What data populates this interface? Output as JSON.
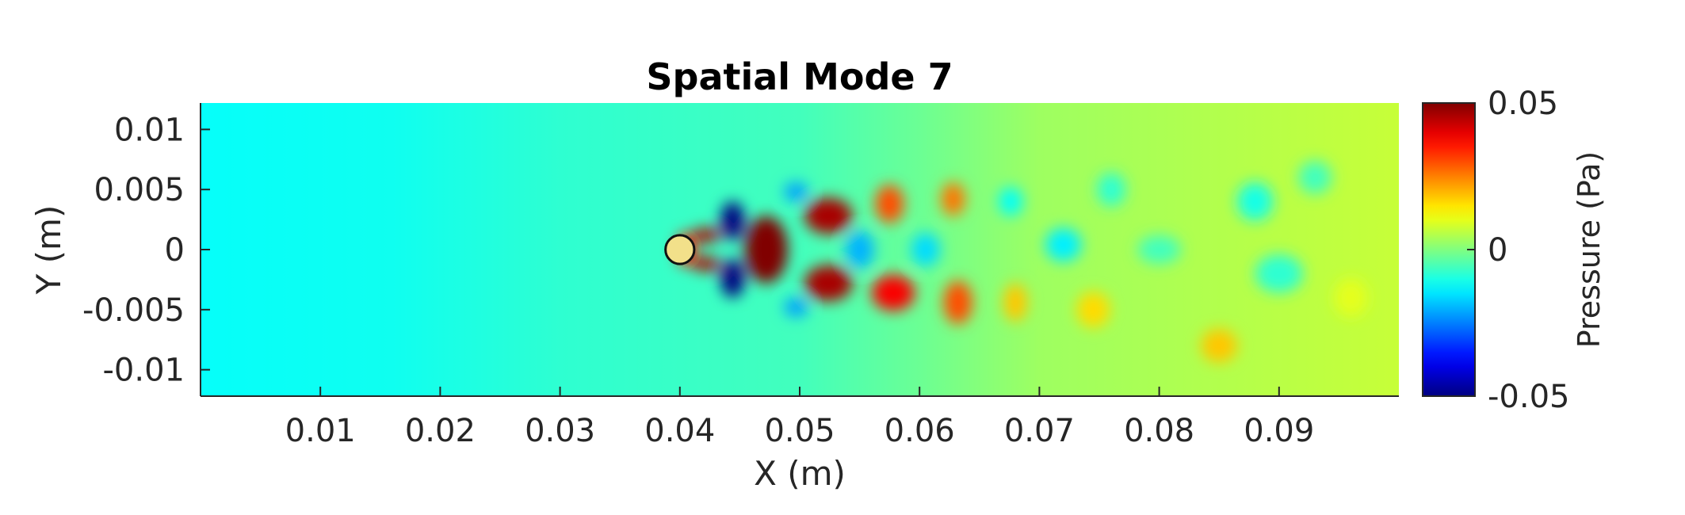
{
  "chart_data": {
    "type": "heatmap",
    "title": "Spatial Mode 7",
    "xlabel": "X (m)",
    "ylabel": "Y (m)",
    "colorbar_label": "Pressure (Pa)",
    "colormap": "jet",
    "xlim": [
      0,
      0.1
    ],
    "ylim": [
      -0.0122,
      0.0122
    ],
    "clim": [
      -0.05,
      0.05
    ],
    "x_ticks": [
      0.01,
      0.02,
      0.03,
      0.04,
      0.05,
      0.06,
      0.07,
      0.08,
      0.09
    ],
    "x_tick_labels": [
      "0.01",
      "0.02",
      "0.03",
      "0.04",
      "0.05",
      "0.06",
      "0.07",
      "0.08",
      "0.09"
    ],
    "y_ticks": [
      0.01,
      0.005,
      0,
      -0.005,
      -0.01
    ],
    "y_tick_labels": [
      "0.01",
      "0.005",
      "0",
      "-0.005",
      "-0.01"
    ],
    "colorbar_ticks": [
      0.05,
      0,
      -0.05
    ],
    "colorbar_tick_labels": [
      "0.05",
      "0",
      "-0.05"
    ],
    "cylinder": {
      "x": 0.04,
      "y": 0,
      "r": 0.0012
    },
    "background_gradient": [
      {
        "x": 0.0,
        "value": -0.012
      },
      {
        "x": 0.016,
        "value": -0.011
      },
      {
        "x": 0.03,
        "value": -0.008
      },
      {
        "x": 0.05,
        "value": -0.006
      },
      {
        "x": 0.06,
        "value": -0.002
      },
      {
        "x": 0.07,
        "value": 0.003
      },
      {
        "x": 0.1,
        "value": 0.007
      }
    ],
    "features": [
      {
        "x": 0.0405,
        "y": 0.0,
        "rx": 0.0008,
        "ry": 0.0014,
        "value": 0.035
      },
      {
        "x": 0.0422,
        "y": 0.0012,
        "rx": 0.0012,
        "ry": 0.0006,
        "value": 0.045
      },
      {
        "x": 0.0422,
        "y": -0.0012,
        "rx": 0.0012,
        "ry": 0.0006,
        "value": 0.045
      },
      {
        "x": 0.0444,
        "y": 0.0024,
        "rx": 0.001,
        "ry": 0.0016,
        "value": -0.05
      },
      {
        "x": 0.0444,
        "y": -0.0024,
        "rx": 0.001,
        "ry": 0.0016,
        "value": -0.05
      },
      {
        "x": 0.0472,
        "y": 0.0,
        "rx": 0.0018,
        "ry": 0.0028,
        "value": 0.05
      },
      {
        "x": 0.0497,
        "y": 0.0048,
        "rx": 0.001,
        "ry": 0.0008,
        "value": -0.022
      },
      {
        "x": 0.0497,
        "y": -0.0048,
        "rx": 0.001,
        "ry": 0.0008,
        "value": -0.022
      },
      {
        "x": 0.0524,
        "y": 0.0028,
        "rx": 0.002,
        "ry": 0.0015,
        "value": 0.046
      },
      {
        "x": 0.0524,
        "y": -0.0028,
        "rx": 0.002,
        "ry": 0.0015,
        "value": 0.046
      },
      {
        "x": 0.055,
        "y": 0.0,
        "rx": 0.0012,
        "ry": 0.0016,
        "value": -0.02
      },
      {
        "x": 0.0575,
        "y": 0.0038,
        "rx": 0.0012,
        "ry": 0.0016,
        "value": 0.03
      },
      {
        "x": 0.0578,
        "y": -0.0036,
        "rx": 0.0018,
        "ry": 0.0015,
        "value": 0.038
      },
      {
        "x": 0.0605,
        "y": 0.0,
        "rx": 0.0012,
        "ry": 0.0014,
        "value": -0.016
      },
      {
        "x": 0.0628,
        "y": 0.0042,
        "rx": 0.001,
        "ry": 0.0014,
        "value": 0.026
      },
      {
        "x": 0.0632,
        "y": -0.0044,
        "rx": 0.0012,
        "ry": 0.0018,
        "value": 0.03
      },
      {
        "x": 0.0676,
        "y": 0.004,
        "rx": 0.001,
        "ry": 0.0012,
        "value": -0.012
      },
      {
        "x": 0.068,
        "y": -0.0044,
        "rx": 0.001,
        "ry": 0.0016,
        "value": 0.018
      },
      {
        "x": 0.072,
        "y": 0.0004,
        "rx": 0.0015,
        "ry": 0.0014,
        "value": -0.014
      },
      {
        "x": 0.0745,
        "y": -0.005,
        "rx": 0.0014,
        "ry": 0.0015,
        "value": 0.016
      },
      {
        "x": 0.076,
        "y": 0.005,
        "rx": 0.0012,
        "ry": 0.0014,
        "value": -0.008
      },
      {
        "x": 0.08,
        "y": 0.0,
        "rx": 0.0018,
        "ry": 0.0012,
        "value": -0.006
      },
      {
        "x": 0.085,
        "y": -0.008,
        "rx": 0.0015,
        "ry": 0.0014,
        "value": 0.018
      },
      {
        "x": 0.088,
        "y": 0.004,
        "rx": 0.0015,
        "ry": 0.0016,
        "value": -0.01
      },
      {
        "x": 0.09,
        "y": -0.002,
        "rx": 0.002,
        "ry": 0.0016,
        "value": -0.008
      },
      {
        "x": 0.093,
        "y": 0.006,
        "rx": 0.0014,
        "ry": 0.0014,
        "value": -0.006
      },
      {
        "x": 0.096,
        "y": -0.004,
        "rx": 0.0014,
        "ry": 0.0016,
        "value": 0.01
      }
    ]
  }
}
